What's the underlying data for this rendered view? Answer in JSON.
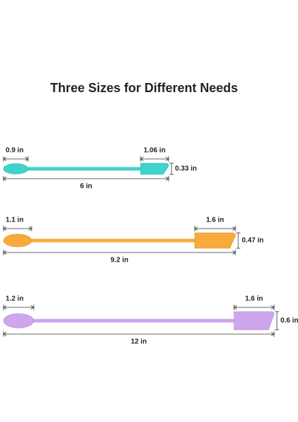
{
  "title": "Three Sizes for Different Needs",
  "items": [
    {
      "spoon_width": "0.9 in",
      "spatula_width": "1.06 in",
      "height": "0.33 in",
      "length": "6 in"
    },
    {
      "spoon_width": "1.1 in",
      "spatula_width": "1.6 in",
      "height": "0.47 in",
      "length": "9.2 in"
    },
    {
      "spoon_width": "1.2 in",
      "spatula_width": "1.6 in",
      "height": "0.6 in",
      "length": "12 in"
    }
  ]
}
